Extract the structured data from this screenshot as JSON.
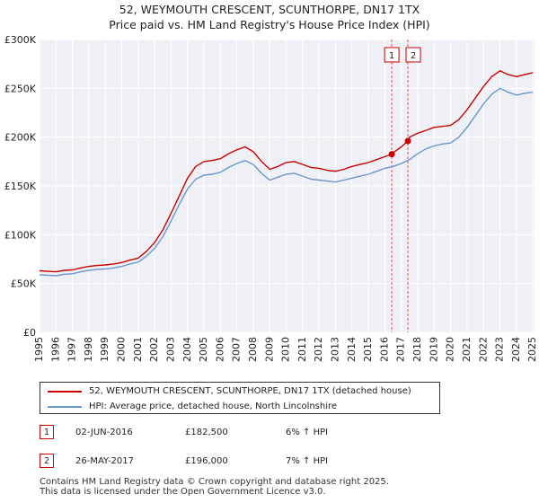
{
  "header": {
    "title_line1": "52, WEYMOUTH CRESCENT, SCUNTHORPE, DN17 1TX",
    "title_line2": "Price paid vs. HM Land Registry's House Price Index (HPI)"
  },
  "chart_data": {
    "type": "line",
    "title": "52, WEYMOUTH CRESCENT, SCUNTHORPE, DN17 1TX — Price paid vs. HM Land Registry's House Price Index (HPI)",
    "xlabel": "",
    "ylabel": "",
    "xlim": [
      1995,
      2025.1
    ],
    "ylim": [
      0,
      300000
    ],
    "grid": true,
    "y_ticks": [
      0,
      50000,
      100000,
      150000,
      200000,
      250000,
      300000
    ],
    "y_tick_labels": [
      "£0",
      "£50K",
      "£100K",
      "£150K",
      "£200K",
      "£250K",
      "£300K"
    ],
    "x_ticks": [
      1995,
      1996,
      1997,
      1998,
      1999,
      2000,
      2001,
      2002,
      2003,
      2004,
      2005,
      2006,
      2007,
      2008,
      2009,
      2010,
      2011,
      2012,
      2013,
      2014,
      2015,
      2016,
      2017,
      2018,
      2019,
      2020,
      2021,
      2022,
      2023,
      2024,
      2025
    ],
    "x_tick_labels": [
      "1995",
      "1996",
      "1997",
      "1998",
      "1999",
      "2000",
      "2001",
      "2002",
      "2003",
      "2004",
      "2005",
      "2006",
      "2007",
      "2008",
      "2009",
      "2010",
      "2011",
      "2012",
      "2013",
      "2014",
      "2015",
      "2016",
      "2017",
      "2018",
      "2019",
      "2020",
      "2021",
      "2022",
      "2023",
      "2024",
      "2025"
    ],
    "series": [
      {
        "name": "52, WEYMOUTH CRESCENT, SCUNTHORPE, DN17 1TX (detached house)",
        "color": "#cc0000",
        "x": [
          1995,
          1995.5,
          1996,
          1996.5,
          1997,
          1997.5,
          1998,
          1998.5,
          1999,
          1999.5,
          2000,
          2000.5,
          2001,
          2001.5,
          2002,
          2002.5,
          2003,
          2003.5,
          2004,
          2004.5,
          2005,
          2005.5,
          2006,
          2006.5,
          2007,
          2007.5,
          2008,
          2008.5,
          2009,
          2009.5,
          2010,
          2010.5,
          2011,
          2011.5,
          2012,
          2012.5,
          2013,
          2013.5,
          2014,
          2014.5,
          2015,
          2015.5,
          2016,
          2016.42,
          2016.5,
          2017,
          2017.4,
          2017.5,
          2018,
          2018.5,
          2019,
          2019.5,
          2020,
          2020.5,
          2021,
          2021.5,
          2022,
          2022.5,
          2023,
          2023.5,
          2024,
          2024.5,
          2025
        ],
        "values": [
          63000,
          62500,
          62000,
          63500,
          64000,
          66000,
          67500,
          68500,
          69000,
          70000,
          71500,
          74000,
          76000,
          83000,
          92000,
          105000,
          122000,
          140000,
          158000,
          170000,
          175000,
          176000,
          178000,
          183000,
          187000,
          190000,
          185000,
          175000,
          167000,
          170000,
          174000,
          175000,
          172000,
          169000,
          168000,
          166000,
          165000,
          167000,
          170000,
          172000,
          174000,
          177000,
          180000,
          182500,
          184000,
          190000,
          196000,
          200000,
          204000,
          207000,
          210000,
          211000,
          212000,
          218000,
          228000,
          240000,
          252000,
          262000,
          268000,
          264000,
          262000,
          264000,
          266000
        ]
      },
      {
        "name": "HPI: Average price, detached house, North Lincolnshire",
        "color": "#6a96cd",
        "x": [
          1995,
          1995.5,
          1996,
          1996.5,
          1997,
          1997.5,
          1998,
          1998.5,
          1999,
          1999.5,
          2000,
          2000.5,
          2001,
          2001.5,
          2002,
          2002.5,
          2003,
          2003.5,
          2004,
          2004.5,
          2005,
          2005.5,
          2006,
          2006.5,
          2007,
          2007.5,
          2008,
          2008.5,
          2009,
          2009.5,
          2010,
          2010.5,
          2011,
          2011.5,
          2012,
          2012.5,
          2013,
          2013.5,
          2014,
          2014.5,
          2015,
          2015.5,
          2016,
          2016.5,
          2017,
          2017.5,
          2018,
          2018.5,
          2019,
          2019.5,
          2020,
          2020.5,
          2021,
          2021.5,
          2022,
          2022.5,
          2023,
          2023.5,
          2024,
          2024.5,
          2025
        ],
        "values": [
          59000,
          58500,
          58000,
          59500,
          60000,
          62000,
          63500,
          64500,
          65000,
          66000,
          67500,
          70000,
          72000,
          78000,
          86000,
          98000,
          114000,
          131000,
          147000,
          157000,
          161000,
          162000,
          164000,
          169000,
          173000,
          176000,
          172000,
          163000,
          156000,
          159000,
          162000,
          163000,
          160000,
          157000,
          156000,
          155000,
          154000,
          156000,
          158000,
          160000,
          162000,
          165000,
          168000,
          170000,
          173000,
          177000,
          183000,
          188000,
          191000,
          193000,
          194000,
          200000,
          210000,
          222000,
          234000,
          244000,
          250000,
          246000,
          243000,
          245000,
          246000
        ]
      }
    ],
    "markers": [
      {
        "label": "1",
        "x": 2016.42,
        "value": 182500
      },
      {
        "label": "2",
        "x": 2017.4,
        "value": 196000
      }
    ]
  },
  "legend": {
    "entries": [
      {
        "label": "52, WEYMOUTH CRESCENT, SCUNTHORPE, DN17 1TX (detached house)",
        "color": "#cc0000"
      },
      {
        "label": "HPI: Average price, detached house, North Lincolnshire",
        "color": "#6a96cd"
      }
    ]
  },
  "transactions": [
    {
      "num": "1",
      "date": "02-JUN-2016",
      "price": "£182,500",
      "hpi": "6% ↑ HPI"
    },
    {
      "num": "2",
      "date": "26-MAY-2017",
      "price": "£196,000",
      "hpi": "7% ↑ HPI"
    }
  ],
  "footer": {
    "line1": "Contains HM Land Registry data © Crown copyright and database right 2025.",
    "line2": "This data is licensed under the Open Government Licence v3.0."
  }
}
